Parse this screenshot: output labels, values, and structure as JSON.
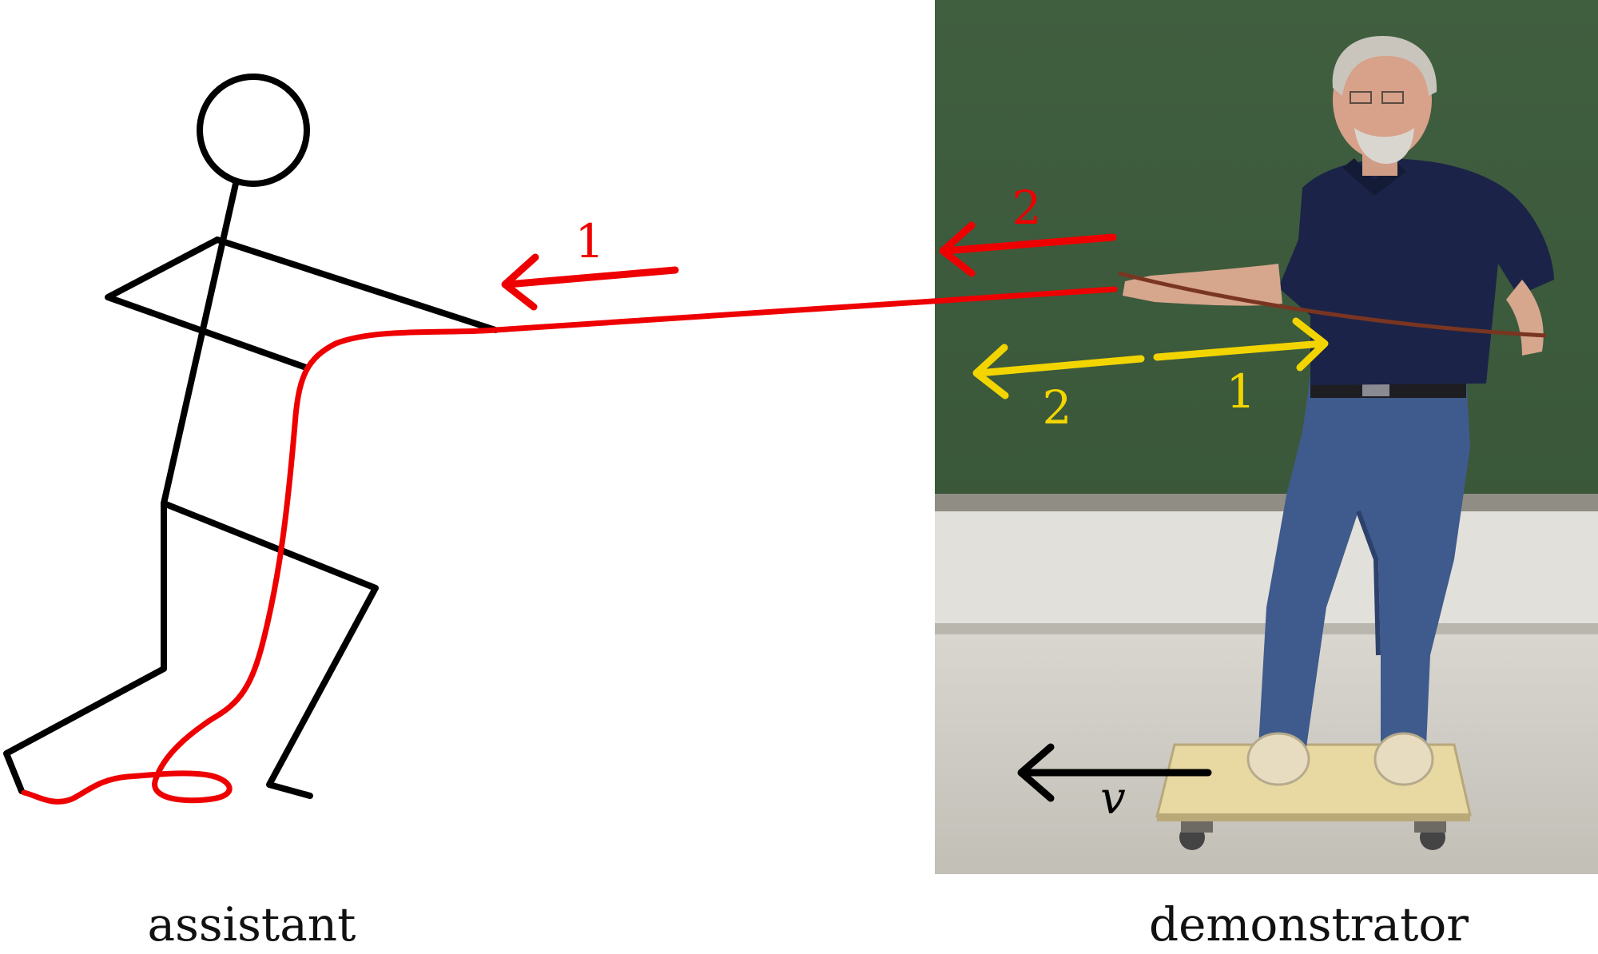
{
  "captions": {
    "assistant": "assistant",
    "demonstrator": "demonstrator"
  },
  "force_labels": {
    "red_1": "1",
    "red_2": "2",
    "yellow_2": "2",
    "yellow_1": "1"
  },
  "velocity_label": "v",
  "colors": {
    "rope": "#ee0000",
    "force_red": "#ee0000",
    "force_yellow": "#f2d500",
    "stick_figure": "#000000",
    "velocity_arrow": "#000000",
    "chalkboard": "#3e5c3e",
    "floor": "#c9c6bd",
    "shirt": "#1b2448",
    "jeans": "#3f5a8c",
    "board_wood": "#e8d9a2"
  },
  "icons": {
    "stick_figure": "stick-figure-icon",
    "photo": "demonstrator-photo"
  }
}
